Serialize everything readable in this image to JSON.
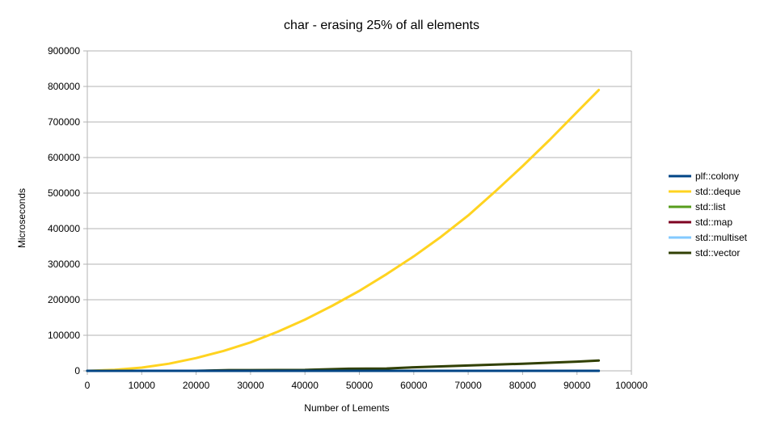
{
  "chart_data": {
    "type": "line",
    "title": "char - erasing 25% of all elements",
    "xlabel": "Number of Lements",
    "ylabel": "Microseconds",
    "xlim": [
      0,
      100000
    ],
    "ylim": [
      0,
      900000
    ],
    "xticks": [
      "0",
      "10000",
      "20000",
      "30000",
      "40000",
      "50000",
      "60000",
      "70000",
      "80000",
      "90000",
      "100000"
    ],
    "yticks": [
      "0",
      "100000",
      "200000",
      "300000",
      "400000",
      "500000",
      "600000",
      "700000",
      "800000",
      "900000"
    ],
    "grid": "horizontal",
    "legend_position": "right",
    "series": [
      {
        "name": "plf::colony",
        "color": "#004586",
        "x": [
          0,
          10000,
          20000,
          30000,
          40000,
          50000,
          60000,
          70000,
          80000,
          90000,
          94000
        ],
        "y": [
          0,
          0,
          0,
          0,
          0,
          0,
          0,
          0,
          0,
          0,
          0
        ]
      },
      {
        "name": "std::deque",
        "color": "#ffd320",
        "x": [
          0,
          5000,
          10000,
          15000,
          20000,
          25000,
          30000,
          35000,
          40000,
          45000,
          50000,
          55000,
          60000,
          65000,
          70000,
          75000,
          80000,
          85000,
          90000,
          94000
        ],
        "y": [
          0,
          3000,
          9000,
          20000,
          36000,
          56000,
          80000,
          110000,
          144000,
          183000,
          225000,
          272000,
          322000,
          377000,
          437000,
          505000,
          576000,
          650000,
          728000,
          790000
        ]
      },
      {
        "name": "std::list",
        "color": "#579d1c",
        "x": [
          0,
          10000,
          20000,
          30000,
          40000,
          50000,
          60000,
          70000,
          80000,
          90000,
          94000
        ],
        "y": [
          0,
          0,
          0,
          0,
          0,
          0,
          0,
          0,
          0,
          0,
          0
        ]
      },
      {
        "name": "std::map",
        "color": "#7e0021",
        "x": [
          0,
          10000,
          20000,
          30000,
          40000,
          50000,
          60000,
          70000,
          80000,
          90000,
          94000
        ],
        "y": [
          0,
          0,
          0,
          0,
          0,
          0,
          0,
          0,
          0,
          0,
          0
        ]
      },
      {
        "name": "std::multiset",
        "color": "#83caff",
        "x": [
          0,
          10000,
          20000,
          30000,
          40000,
          50000,
          60000,
          70000,
          80000,
          90000,
          94000
        ],
        "y": [
          0,
          0,
          0,
          0,
          0,
          0,
          0,
          0,
          0,
          0,
          0
        ]
      },
      {
        "name": "std::vector",
        "color": "#314004",
        "x": [
          0,
          10000,
          20000,
          26000,
          30000,
          40000,
          48000,
          55000,
          60000,
          70000,
          80000,
          90000,
          94000
        ],
        "y": [
          0,
          0,
          0,
          2000,
          2000,
          2500,
          6000,
          6500,
          10000,
          15000,
          20000,
          26000,
          29000
        ]
      }
    ]
  }
}
